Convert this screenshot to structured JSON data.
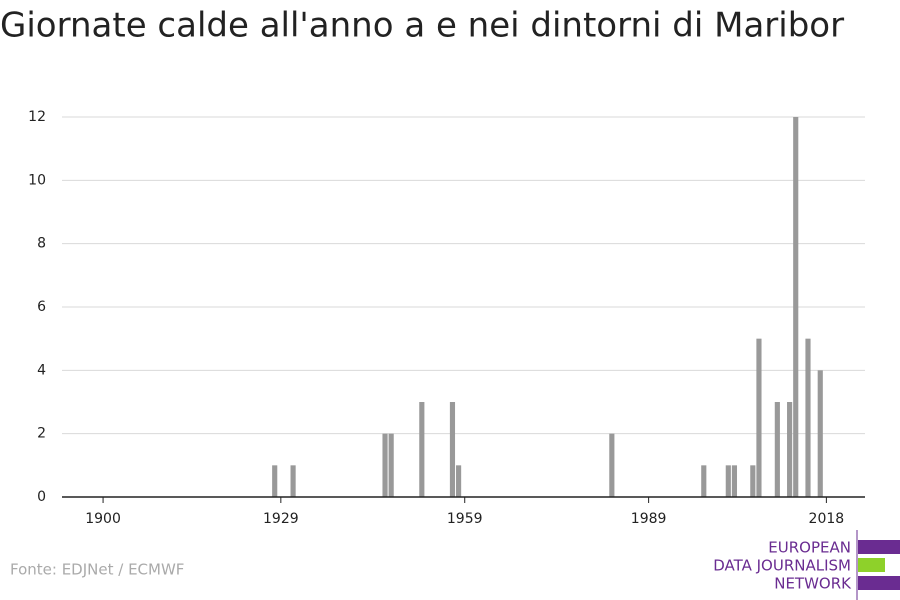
{
  "chart_data": {
    "type": "bar",
    "title": "Giornate calde all'anno a e nei dintorni di Maribor",
    "x": [
      1928,
      1931,
      1946,
      1947,
      1952,
      1957,
      1958,
      1983,
      1998,
      2002,
      2003,
      2006,
      2007,
      2010,
      2012,
      2013,
      2015,
      2017
    ],
    "values": [
      1,
      1,
      2,
      2,
      3,
      3,
      1,
      2,
      1,
      1,
      1,
      1,
      5,
      3,
      3,
      12,
      5,
      4
    ],
    "color": "#999999",
    "xlim": [
      1893.3,
      2024.3
    ],
    "xticks": [
      1900,
      1929,
      1959,
      1989,
      2018
    ],
    "ylim": [
      0,
      12
    ],
    "yticks": [
      0,
      2,
      4,
      6,
      8,
      10,
      12
    ],
    "grid": true
  },
  "footer": {
    "source": "Fonte: EDJNet / ECMWF",
    "logo": [
      "EUROPEAN",
      "DATA JOURNALISM",
      "NETWORK"
    ]
  }
}
